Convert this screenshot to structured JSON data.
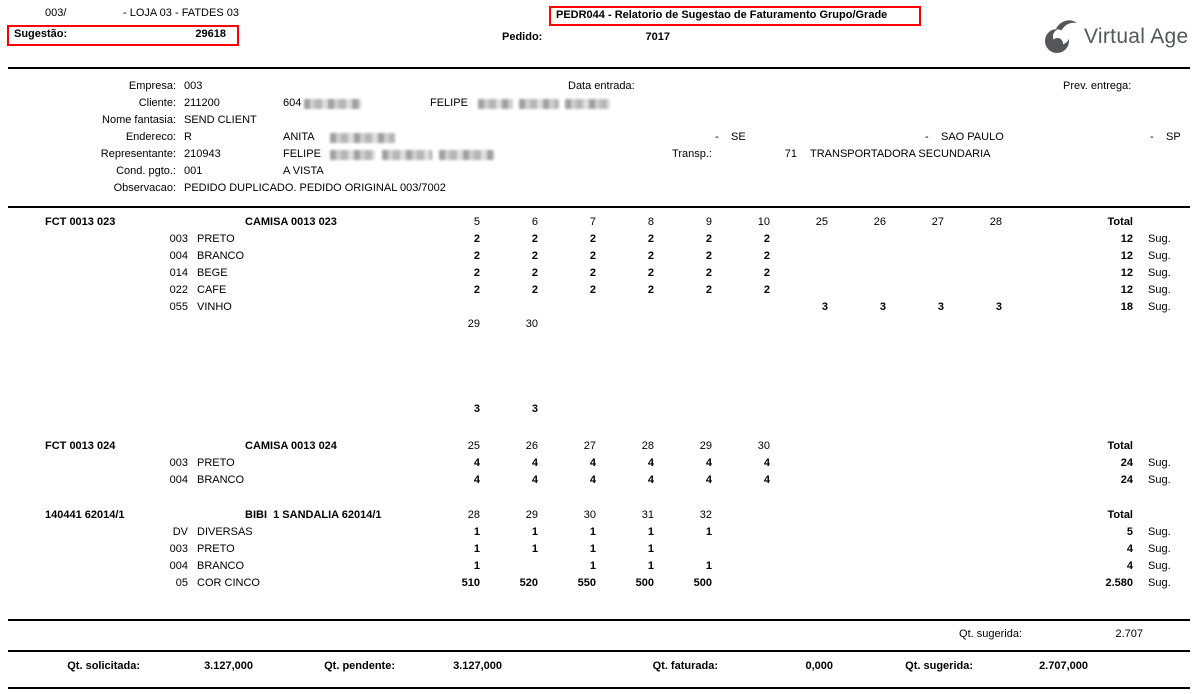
{
  "top": {
    "branch_code": "003/",
    "branch_desc": "- LOJA 03 - FATDES 03",
    "sugestao_label": "Sugestão:",
    "sugestao_value": "29618",
    "pedido_label": "Pedido:",
    "pedido_value": "7017",
    "report_title": "PEDR044 - Relatorio de Sugestao de Faturamento Grupo/Grade",
    "logo_text": "Virtual Age"
  },
  "colors": {
    "highlight_red": "#ff0000",
    "logo_gray": "#54565a",
    "text": "#000000"
  },
  "header": {
    "rows": [
      {
        "label": "Empresa:",
        "value": "003"
      },
      {
        "label": "Cliente:",
        "value": "211200"
      },
      {
        "label": "Nome fantasia:",
        "value": "SEND CLIENT"
      },
      {
        "label": "Endereco:",
        "value": "R"
      },
      {
        "label": "Representante:",
        "value": "210943"
      },
      {
        "label": "Cond. pgto.:",
        "value": "001"
      },
      {
        "label": "Observacao:",
        "value": "PEDIDO DUPLICADO. PEDIDO ORIGINAL 003/7002"
      }
    ],
    "data_entrada_label": "Data entrada:",
    "prev_entrega_label": "Prev. entrega:",
    "cliente_code2": "604",
    "cliente_nome": "FELIPE",
    "endereco_rua": "ANITA",
    "representante_nome": "FELIPE",
    "cond_pgto_desc": "A VISTA",
    "sep1": "-",
    "bairro": "SE",
    "sep2": "-",
    "cidade": "SAO PAULO",
    "sep3": "-",
    "uf": "SP",
    "transp_label": "Transp.:",
    "transp_code": "71",
    "transp_name": "TRANSPORTADORA SECUNDARIA"
  },
  "product_blocks": [
    {
      "code": "FCT 0013 023",
      "description": "CAMISA 0013 023",
      "total_label": "Total",
      "sizes": [
        "5",
        "6",
        "7",
        "8",
        "9",
        "10",
        "25",
        "26",
        "27",
        "28"
      ],
      "rows": [
        {
          "color_code": "003",
          "color_name": "PRETO",
          "qty": [
            "2",
            "2",
            "2",
            "2",
            "2",
            "2",
            "",
            "",
            "",
            ""
          ],
          "total": "12",
          "sug": "Sug."
        },
        {
          "color_code": "004",
          "color_name": "BRANCO",
          "qty": [
            "2",
            "2",
            "2",
            "2",
            "2",
            "2",
            "",
            "",
            "",
            ""
          ],
          "total": "12",
          "sug": "Sug."
        },
        {
          "color_code": "014",
          "color_name": "BEGE",
          "qty": [
            "2",
            "2",
            "2",
            "2",
            "2",
            "2",
            "",
            "",
            "",
            ""
          ],
          "total": "12",
          "sug": "Sug."
        },
        {
          "color_code": "022",
          "color_name": "CAFE",
          "qty": [
            "2",
            "2",
            "2",
            "2",
            "2",
            "2",
            "",
            "",
            "",
            ""
          ],
          "total": "12",
          "sug": "Sug."
        },
        {
          "color_code": "055",
          "color_name": "VINHO",
          "qty": [
            "",
            "",
            "",
            "",
            "",
            "",
            "3",
            "3",
            "3",
            "3"
          ],
          "total": "18",
          "sug": "Sug."
        }
      ],
      "continuation_sizes": [
        "29",
        "30"
      ],
      "continuation_rows": [
        {
          "qty": [
            "",
            ""
          ]
        },
        {
          "qty": [
            "",
            ""
          ]
        },
        {
          "qty": [
            "",
            ""
          ]
        },
        {
          "qty": [
            "",
            ""
          ]
        },
        {
          "qty": [
            "3",
            "3"
          ]
        }
      ]
    },
    {
      "code": "FCT 0013 024",
      "description": "CAMISA 0013 024",
      "total_label": "Total",
      "sizes": [
        "25",
        "26",
        "27",
        "28",
        "29",
        "30"
      ],
      "rows": [
        {
          "color_code": "003",
          "color_name": "PRETO",
          "qty": [
            "4",
            "4",
            "4",
            "4",
            "4",
            "4"
          ],
          "total": "24",
          "sug": "Sug."
        },
        {
          "color_code": "004",
          "color_name": "BRANCO",
          "qty": [
            "4",
            "4",
            "4",
            "4",
            "4",
            "4"
          ],
          "total": "24",
          "sug": "Sug."
        }
      ]
    },
    {
      "code": "140441 62014/1",
      "description": "BIBI  1 SANDALIA 62014/1",
      "total_label": "Total",
      "sizes": [
        "28",
        "29",
        "30",
        "31",
        "32"
      ],
      "rows": [
        {
          "color_code": "DV",
          "color_name": "DIVERSAS",
          "qty": [
            "1",
            "1",
            "1",
            "1",
            "1"
          ],
          "total": "5",
          "sug": "Sug."
        },
        {
          "color_code": "003",
          "color_name": "PRETO",
          "qty": [
            "1",
            "1",
            "1",
            "1",
            ""
          ],
          "total": "4",
          "sug": "Sug."
        },
        {
          "color_code": "004",
          "color_name": "BRANCO",
          "qty": [
            "1",
            "",
            "1",
            "1",
            "1"
          ],
          "total": "4",
          "sug": "Sug."
        },
        {
          "color_code": "05",
          "color_name": "COR CINCO",
          "qty": [
            "510",
            "520",
            "550",
            "500",
            "500"
          ],
          "total": "2.580",
          "sug": "Sug."
        }
      ]
    }
  ],
  "summary": {
    "qt_sugerida_label": "Qt. sugerida:",
    "qt_sugerida_value": "2.707",
    "totals": [
      {
        "label": "Qt. solicitada:",
        "value": "3.127,000"
      },
      {
        "label": "Qt. pendente:",
        "value": "3.127,000"
      },
      {
        "label": "Qt. faturada:",
        "value": "0,000"
      },
      {
        "label": "Qt. sugerida:",
        "value": "2.707,000"
      }
    ]
  }
}
